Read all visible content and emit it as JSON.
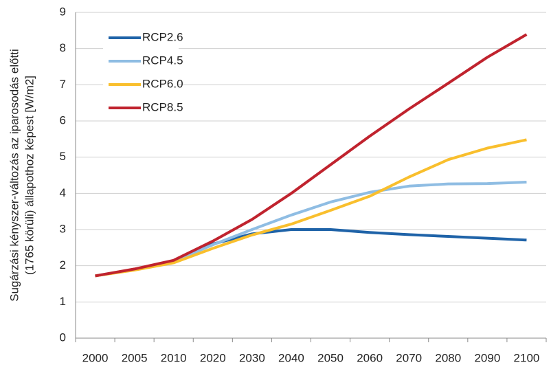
{
  "chart_data": {
    "type": "line",
    "ylabel": [
      "Sugárzási kényszer-változás az iparosodás előtti",
      "(1765 körüli) állapothoz képest [W/m2]"
    ],
    "categories": [
      "2000",
      "2005",
      "2010",
      "2020",
      "2030",
      "2040",
      "2050",
      "2060",
      "2070",
      "2080",
      "2090",
      "2100"
    ],
    "series": [
      {
        "name": "RCP2.6",
        "color": "#1f63a8",
        "values": [
          1.72,
          1.9,
          2.13,
          2.6,
          2.88,
          3.0,
          3.0,
          2.92,
          2.86,
          2.81,
          2.76,
          2.71
        ]
      },
      {
        "name": "RCP4.5",
        "color": "#8fbde3",
        "values": [
          1.72,
          1.9,
          2.12,
          2.58,
          3.0,
          3.4,
          3.76,
          4.03,
          4.2,
          4.26,
          4.27,
          4.31
        ]
      },
      {
        "name": "RCP6.0",
        "color": "#f9bf2d",
        "values": [
          1.72,
          1.88,
          2.08,
          2.48,
          2.85,
          3.15,
          3.53,
          3.92,
          4.45,
          4.93,
          5.25,
          5.48
        ]
      },
      {
        "name": "RCP8.5",
        "color": "#c0232e",
        "values": [
          1.72,
          1.91,
          2.15,
          2.68,
          3.28,
          4.0,
          4.79,
          5.58,
          6.33,
          7.04,
          7.76,
          8.39
        ]
      }
    ],
    "ylim": [
      0,
      9
    ],
    "yticks": [
      0,
      1,
      2,
      3,
      4,
      5,
      6,
      7,
      8,
      9
    ],
    "grid": true,
    "legend": "top-left"
  }
}
